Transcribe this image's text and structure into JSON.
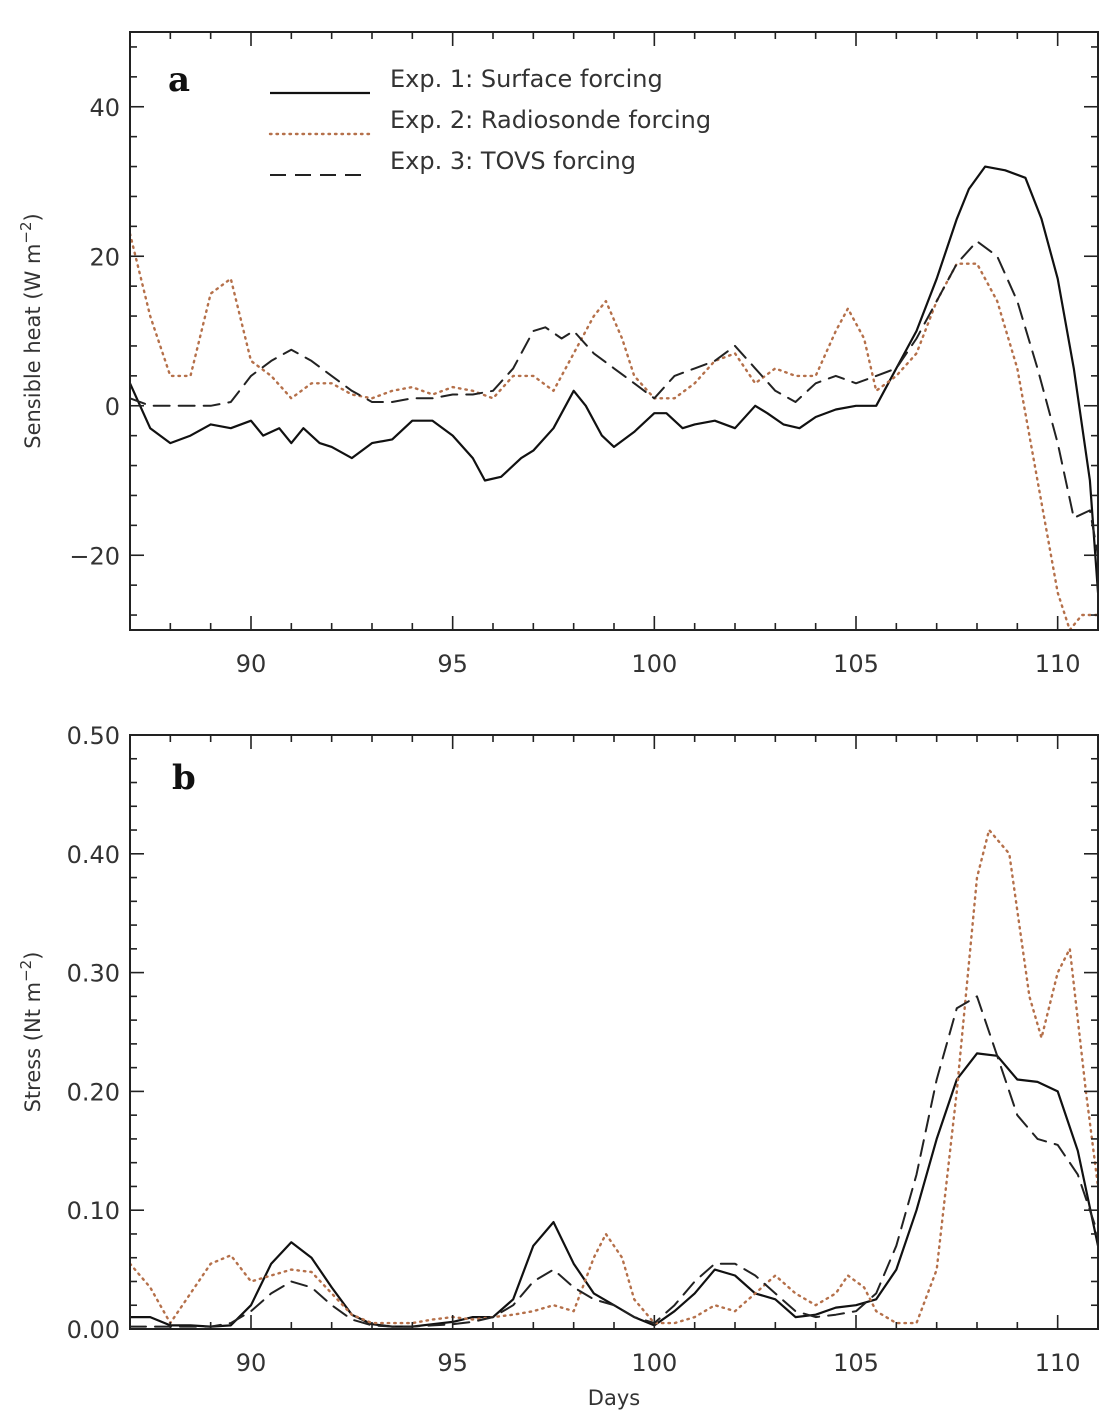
{
  "chart_data": [
    {
      "type": "line",
      "panel_label": "a",
      "xlabel": "",
      "ylabel": "Sensible heat (W m",
      "ylabel_sup": "−2",
      "ylabel_tail": ")",
      "xlim": [
        87,
        111
      ],
      "ylim": [
        -30,
        50
      ],
      "xticks": [
        90,
        95,
        100,
        105,
        110
      ],
      "yticks": [
        -20,
        0,
        20,
        40
      ],
      "ytick_labels": [
        "−20",
        "0",
        "20",
        "40"
      ],
      "legend_position": "top",
      "series": [
        {
          "name": "Exp. 1: Surface forcing",
          "style": "solid",
          "color": "#111111",
          "x": [
            87,
            87.5,
            88,
            88.5,
            89,
            89.5,
            90,
            90.3,
            90.7,
            91,
            91.3,
            91.7,
            92,
            92.5,
            93,
            93.5,
            94,
            94.5,
            95,
            95.5,
            95.8,
            96.2,
            96.7,
            97,
            97.5,
            98,
            98.3,
            98.7,
            99,
            99.5,
            100,
            100.3,
            100.7,
            101,
            101.5,
            102,
            102.5,
            102.8,
            103.2,
            103.6,
            104,
            104.5,
            105,
            105.5,
            106,
            106.5,
            107,
            107.5,
            107.8,
            108.2,
            108.7,
            109.2,
            109.6,
            110,
            110.4,
            110.8,
            111
          ],
          "y": [
            3,
            -3,
            -5,
            -4,
            -2.5,
            -3,
            -2,
            -4,
            -3,
            -5,
            -3,
            -5,
            -5.5,
            -7,
            -5,
            -4.5,
            -2,
            -2,
            -4,
            -7,
            -10,
            -9.5,
            -7,
            -6,
            -3,
            2,
            0,
            -4,
            -5.5,
            -3.5,
            -1,
            -1,
            -3,
            -2.5,
            -2,
            -3,
            0,
            -1,
            -2.5,
            -3,
            -1.5,
            -0.5,
            0,
            0,
            5,
            10,
            17,
            25,
            29,
            32,
            31.5,
            30.5,
            25,
            17,
            5,
            -10,
            -25
          ]
        },
        {
          "name": "Exp. 2: Radiosonde forcing",
          "style": "dotted",
          "color": "#b5704a",
          "x": [
            87,
            87.5,
            88,
            88.5,
            89,
            89.5,
            90,
            90.5,
            91,
            91.5,
            92,
            92.5,
            93,
            93.5,
            94,
            94.5,
            95,
            95.5,
            96,
            96.5,
            97,
            97.5,
            98,
            98.5,
            98.8,
            99.2,
            99.5,
            100,
            100.5,
            101,
            101.5,
            102,
            102.5,
            103,
            103.5,
            104,
            104.5,
            104.8,
            105.2,
            105.5,
            106,
            106.5,
            107,
            107.5,
            108,
            108.5,
            109,
            109.5,
            110,
            110.3,
            110.6,
            111
          ],
          "y": [
            23,
            12,
            4,
            4,
            15,
            17,
            6,
            4,
            1,
            3,
            3,
            1.5,
            1,
            2,
            2.5,
            1.5,
            2.5,
            2,
            1,
            4,
            4,
            2,
            7,
            12,
            14,
            9,
            4,
            1,
            1,
            3,
            6,
            7,
            3,
            5,
            4,
            4,
            10,
            13,
            9,
            2,
            4,
            7,
            14,
            19,
            19,
            14,
            5,
            -10,
            -25,
            -30,
            -28,
            -28
          ]
        },
        {
          "name": "Exp. 3: TOVS forcing",
          "style": "dashed",
          "color": "#222222",
          "x": [
            87,
            87.5,
            88,
            88.5,
            89,
            89.5,
            90,
            90.5,
            91,
            91.5,
            92,
            92.5,
            93,
            93.5,
            94,
            94.5,
            95,
            95.5,
            96,
            96.5,
            97,
            97.3,
            97.7,
            98,
            98.5,
            99,
            99.5,
            100,
            100.5,
            101,
            101.5,
            102,
            102.5,
            103,
            103.5,
            104,
            104.5,
            105,
            105.5,
            106,
            106.5,
            107,
            107.5,
            108,
            108.5,
            109,
            109.5,
            110,
            110.4,
            110.8,
            111
          ],
          "y": [
            1,
            0,
            0,
            0,
            0,
            0.5,
            4,
            6,
            7.5,
            6,
            4,
            2,
            0.5,
            0.5,
            1,
            1,
            1.5,
            1.5,
            2,
            5,
            10,
            10.5,
            9,
            10,
            7,
            5,
            3,
            1,
            4,
            5,
            6,
            8,
            5,
            2,
            0.5,
            3,
            4,
            3,
            4,
            5,
            9,
            14,
            19,
            22,
            20,
            14,
            5,
            -5,
            -15,
            -14,
            -20
          ]
        }
      ]
    },
    {
      "type": "line",
      "panel_label": "b",
      "xlabel": "Days",
      "ylabel": "Stress (Nt m",
      "ylabel_sup": "−2",
      "ylabel_tail": ")",
      "xlim": [
        87,
        111
      ],
      "ylim": [
        0,
        0.5
      ],
      "xticks": [
        90,
        95,
        100,
        105,
        110
      ],
      "yticks": [
        0,
        0.1,
        0.2,
        0.3,
        0.4,
        0.5
      ],
      "ytick_labels": [
        "0.00",
        "0.10",
        "0.20",
        "0.30",
        "0.40",
        "0.50"
      ],
      "series": [
        {
          "name": "Exp. 1: Surface forcing",
          "style": "solid",
          "color": "#111111",
          "x": [
            87,
            87.5,
            88,
            88.5,
            89,
            89.5,
            90,
            90.5,
            91,
            91.5,
            92,
            92.5,
            93,
            93.5,
            94,
            94.5,
            95,
            95.5,
            96,
            96.5,
            97,
            97.5,
            98,
            98.5,
            99,
            99.5,
            100,
            100.5,
            101,
            101.5,
            102,
            102.5,
            103,
            103.5,
            104,
            104.5,
            105,
            105.5,
            106,
            106.5,
            107,
            107.5,
            108,
            108.5,
            109,
            109.5,
            110,
            110.5,
            111
          ],
          "y": [
            0.01,
            0.01,
            0.003,
            0.003,
            0.002,
            0.003,
            0.02,
            0.055,
            0.073,
            0.06,
            0.035,
            0.012,
            0.004,
            0.002,
            0.002,
            0.004,
            0.006,
            0.01,
            0.01,
            0.025,
            0.07,
            0.09,
            0.055,
            0.03,
            0.02,
            0.01,
            0.003,
            0.015,
            0.03,
            0.05,
            0.045,
            0.03,
            0.025,
            0.01,
            0.012,
            0.018,
            0.02,
            0.025,
            0.05,
            0.1,
            0.16,
            0.21,
            0.232,
            0.23,
            0.21,
            0.208,
            0.2,
            0.15,
            0.07
          ]
        },
        {
          "name": "Exp. 2: Radiosonde forcing",
          "style": "dotted",
          "color": "#b5704a",
          "x": [
            87,
            87.5,
            88,
            88.5,
            89,
            89.5,
            90,
            90.5,
            91,
            91.5,
            92,
            92.5,
            93,
            93.5,
            94,
            94.5,
            95,
            95.5,
            96,
            96.5,
            97,
            97.5,
            98,
            98.5,
            98.8,
            99.2,
            99.5,
            100,
            100.5,
            101,
            101.5,
            102,
            102.5,
            103,
            103.5,
            104,
            104.5,
            104.8,
            105.2,
            105.5,
            106,
            106.5,
            107,
            107.5,
            108,
            108.3,
            108.8,
            109.3,
            109.6,
            110,
            110.3,
            110.7,
            111
          ],
          "y": [
            0.055,
            0.035,
            0.005,
            0.03,
            0.055,
            0.062,
            0.04,
            0.045,
            0.05,
            0.048,
            0.03,
            0.012,
            0.005,
            0.005,
            0.005,
            0.008,
            0.01,
            0.008,
            0.01,
            0.012,
            0.015,
            0.02,
            0.015,
            0.06,
            0.08,
            0.06,
            0.025,
            0.005,
            0.005,
            0.01,
            0.02,
            0.015,
            0.03,
            0.045,
            0.03,
            0.02,
            0.03,
            0.045,
            0.035,
            0.015,
            0.005,
            0.005,
            0.05,
            0.2,
            0.38,
            0.42,
            0.4,
            0.28,
            0.245,
            0.3,
            0.32,
            0.2,
            0.12
          ]
        },
        {
          "name": "Exp. 3: TOVS forcing",
          "style": "dashed",
          "color": "#222222",
          "x": [
            87,
            87.5,
            88,
            88.5,
            89,
            89.5,
            90,
            90.5,
            91,
            91.5,
            92,
            92.5,
            93,
            93.5,
            94,
            94.5,
            95,
            95.5,
            96,
            96.5,
            97,
            97.5,
            98,
            98.5,
            99,
            99.5,
            100,
            100.5,
            101,
            101.5,
            102,
            102.5,
            103,
            103.5,
            104,
            104.5,
            105,
            105.5,
            106,
            106.5,
            107,
            107.5,
            108,
            108.5,
            109,
            109.5,
            110,
            110.5,
            111
          ],
          "y": [
            0.002,
            0.002,
            0.002,
            0.002,
            0.002,
            0.005,
            0.015,
            0.03,
            0.04,
            0.035,
            0.02,
            0.008,
            0.003,
            0.002,
            0.002,
            0.003,
            0.004,
            0.006,
            0.01,
            0.02,
            0.04,
            0.05,
            0.035,
            0.025,
            0.02,
            0.01,
            0.005,
            0.02,
            0.04,
            0.055,
            0.055,
            0.045,
            0.03,
            0.015,
            0.01,
            0.012,
            0.015,
            0.03,
            0.07,
            0.13,
            0.21,
            0.27,
            0.28,
            0.23,
            0.18,
            0.16,
            0.155,
            0.13,
            0.08
          ]
        }
      ]
    }
  ]
}
